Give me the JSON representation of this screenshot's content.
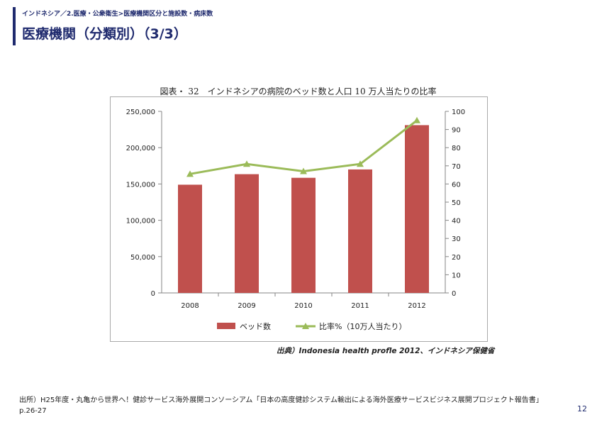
{
  "header": {
    "breadcrumb": "インドネシア／2.医療・公衆衛生>医療機関区分と施設数・病床数",
    "title": "医療機関（分類別）（3/3）"
  },
  "figure": {
    "caption": "図表・ 32　インドネシアの病院のベッド数と人口 10 万人当たりの比率",
    "source": "出典）Indonesia health profle 2012、インドネシア保健省"
  },
  "chart_data": {
    "type": "bar",
    "categories": [
      "2008",
      "2009",
      "2010",
      "2011",
      "2012"
    ],
    "series": [
      {
        "name": "ベッド数",
        "type": "bar",
        "axis": "left",
        "color": "#c0504d",
        "values": [
          149000,
          163500,
          158500,
          170000,
          231000
        ]
      },
      {
        "name": "比率%（10万人当たり）",
        "type": "line",
        "axis": "right",
        "color": "#9bbb59",
        "values": [
          65.5,
          71,
          67,
          71,
          95
        ]
      }
    ],
    "y_left": {
      "min": 0,
      "max": 250000,
      "ticks": [
        "250,000",
        "200,000",
        "150,000",
        "100,000",
        "50,000",
        "0"
      ]
    },
    "y_right": {
      "min": 0,
      "max": 100,
      "ticks": [
        "100",
        "90",
        "80",
        "70",
        "60",
        "50",
        "40",
        "30",
        "20",
        "10",
        "0"
      ]
    },
    "legend_position": "bottom",
    "grid": false
  },
  "footer": {
    "note": "出所）H25年度・丸亀から世界へ！健診サービス海外展開コンソーシアム「日本の高度健診システム輸出による海外医療サービスビジネス展開プロジェクト報告書」p.26-27",
    "page_number": "12"
  }
}
